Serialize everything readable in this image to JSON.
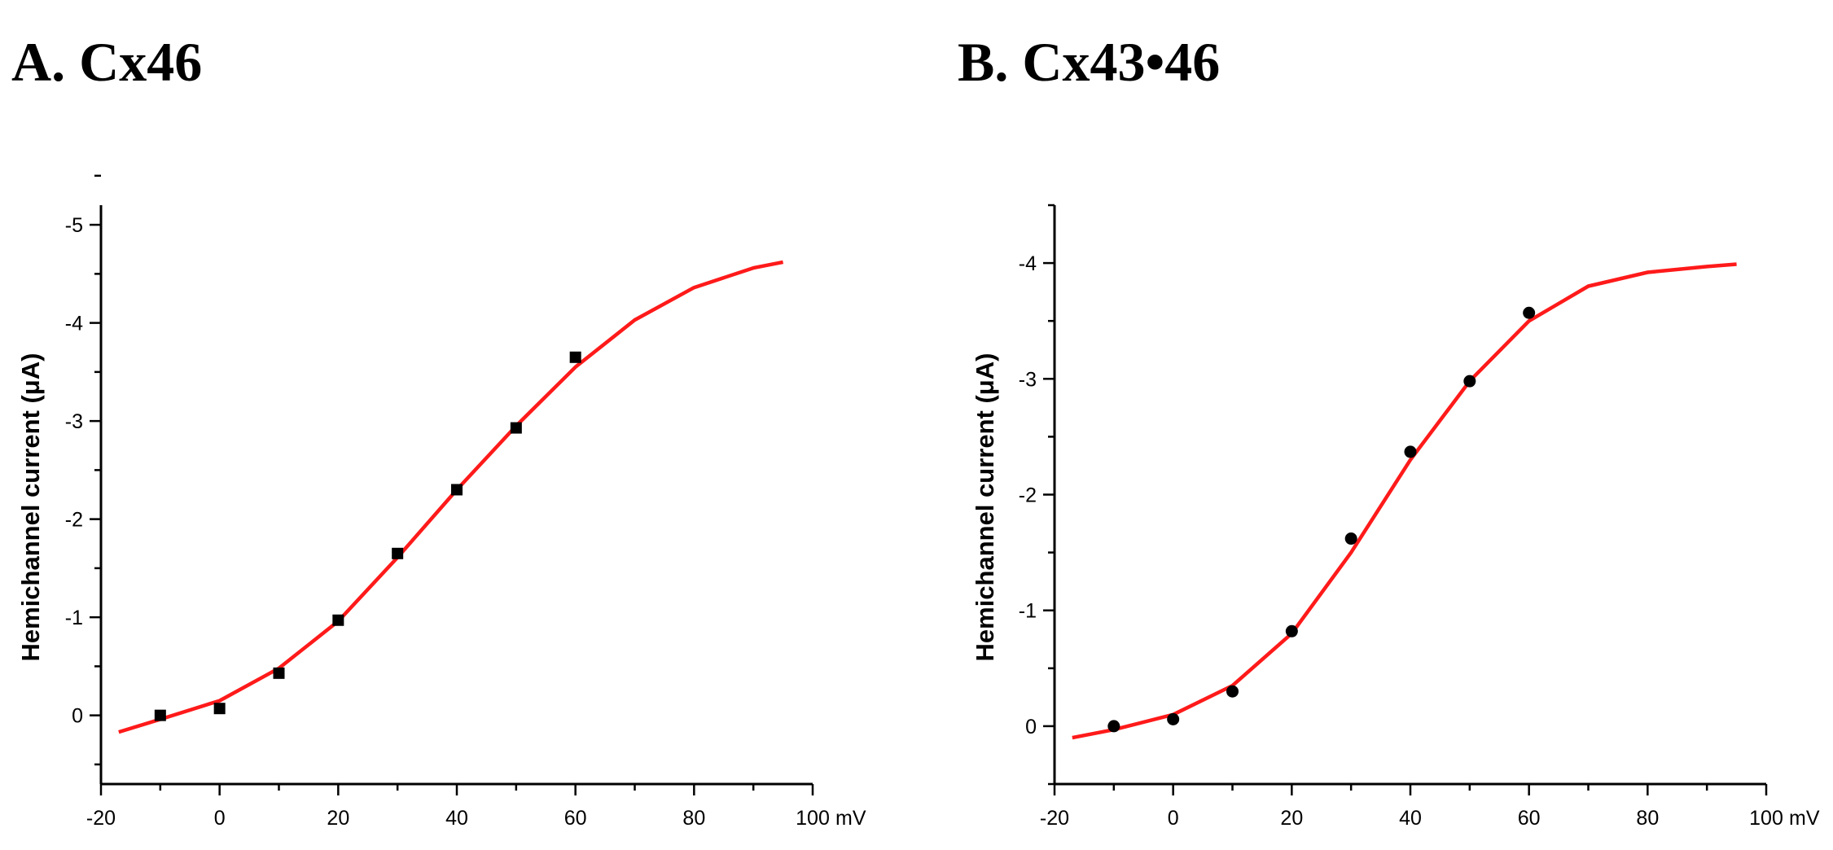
{
  "panels": [
    {
      "label": "A. Cx46"
    },
    {
      "label": "B. Cx43•46"
    }
  ],
  "colors": {
    "fit": "#ff1a1a",
    "axis": "#000000",
    "points": "#000000"
  },
  "chart_data": [
    {
      "type": "scatter",
      "title": "A. Cx46",
      "xlabel": "mV",
      "ylabel": "Hemichannel current (μA)",
      "xlim": [
        -20,
        100
      ],
      "ylim": [
        0.7,
        -5.2
      ],
      "y_axis_inverted": true,
      "xticks": [
        -20,
        0,
        20,
        40,
        60,
        80,
        100
      ],
      "yticks": [
        0,
        -1,
        -2,
        -3,
        -4,
        -5
      ],
      "marker": "square",
      "grid": false,
      "series": [
        {
          "kind": "points",
          "x": [
            -10,
            0,
            10,
            20,
            30,
            40,
            50,
            60
          ],
          "y": [
            0.0,
            -0.07,
            -0.43,
            -0.97,
            -1.65,
            -2.3,
            -2.93,
            -3.65
          ]
        },
        {
          "kind": "fit",
          "x": [
            -17,
            -10,
            0,
            10,
            20,
            30,
            40,
            50,
            60,
            70,
            80,
            90,
            95
          ],
          "y": [
            0.17,
            0.04,
            -0.15,
            -0.48,
            -0.96,
            -1.61,
            -2.3,
            -2.95,
            -3.55,
            -4.03,
            -4.36,
            -4.56,
            -4.62
          ]
        }
      ]
    },
    {
      "type": "scatter",
      "title": "B. Cx43•46",
      "xlabel": "mV",
      "ylabel": "Hemichannel current (μA)",
      "xlim": [
        -20,
        100
      ],
      "ylim": [
        0.5,
        -4.5
      ],
      "y_axis_inverted": true,
      "xticks": [
        -20,
        0,
        20,
        40,
        60,
        80,
        100
      ],
      "yticks": [
        0,
        -1,
        -2,
        -3,
        -4
      ],
      "marker": "circle",
      "grid": false,
      "series": [
        {
          "kind": "points",
          "x": [
            -10,
            0,
            10,
            20,
            30,
            40,
            50,
            60
          ],
          "y": [
            0.0,
            -0.06,
            -0.3,
            -0.82,
            -1.62,
            -2.37,
            -2.98,
            -3.57
          ]
        },
        {
          "kind": "fit",
          "x": [
            -17,
            -10,
            0,
            10,
            20,
            30,
            40,
            50,
            60,
            70,
            80,
            90,
            95
          ],
          "y": [
            0.1,
            0.03,
            -0.1,
            -0.35,
            -0.8,
            -1.5,
            -2.3,
            -2.98,
            -3.5,
            -3.8,
            -3.92,
            -3.97,
            -3.99
          ]
        }
      ]
    }
  ]
}
